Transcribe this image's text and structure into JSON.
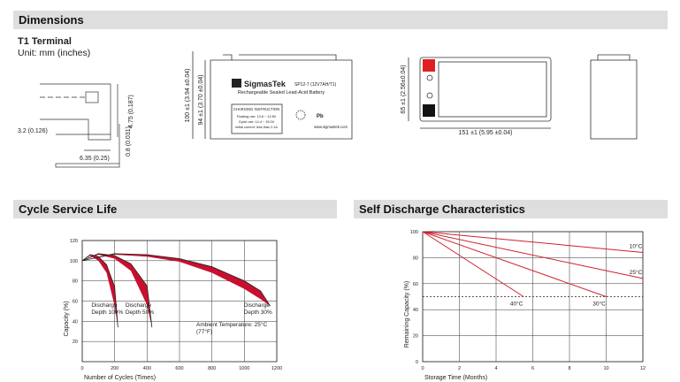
{
  "dimensions": {
    "title": "Dimensions",
    "terminal_title": "T1 Terminal",
    "unit": "Unit: mm (inches)",
    "terminal_labels": [
      "4.75 (0.187)",
      "3.2 (0.126)",
      "6.35 (0.25)",
      "0.8 (0.031)"
    ],
    "front_labels": [
      "100 ±1 (3.94 ±0.04)",
      "94 ±1 (3.70 ±0.04)"
    ],
    "side_labels": [
      "65 ±1 (2.56±0.04)",
      "151 ±1 (5.95 ±0.04)"
    ],
    "battery": {
      "brand": "SigmasTek",
      "model": "SP12-7 (12V7AH/T1)",
      "subtitle": "Rechargeable Sealed Lead-Acid Battery",
      "instruction_title": "CHARGING INSTRUCTION",
      "instructions": [
        "Floating use: 13.6 ~ 13.8V",
        "Cycle use: 14.4 ~ 15.0V",
        "Initial current: less than 2.1A"
      ],
      "pb": "Pb",
      "website": "www.sigmastek.com"
    }
  },
  "chart_data": [
    {
      "type": "band",
      "title": "Cycle Service Life",
      "x_label": "Number of Cycles (Times)",
      "y_label": "Capacity (%)",
      "annotation": "Ambient Temperature: 25°C (77°F)",
      "xlim": [
        0,
        1200
      ],
      "xticks": [
        0,
        200,
        400,
        600,
        800,
        1000,
        1200
      ],
      "ylim": [
        0,
        120
      ],
      "yticks": [
        20,
        40,
        60,
        80,
        100,
        120
      ],
      "grid": true,
      "series": [
        {
          "name": "Discharge Depth 100%",
          "color": "#c8102e",
          "x": [
            0,
            50,
            100,
            150,
            200,
            220
          ],
          "high": [
            100,
            106,
            104,
            96,
            74,
            34
          ],
          "low": [
            100,
            105,
            100,
            88,
            55,
            34
          ]
        },
        {
          "name": "Discharge Depth 50%",
          "color": "#c8102e",
          "x": [
            0,
            100,
            200,
            300,
            400,
            430
          ],
          "high": [
            100,
            107,
            105,
            97,
            75,
            34
          ],
          "low": [
            100,
            106,
            102,
            90,
            56,
            34
          ]
        },
        {
          "name": "Discharge Depth 30%",
          "color": "#c8102e",
          "x": [
            0,
            200,
            400,
            600,
            800,
            1000,
            1100,
            1160
          ],
          "high": [
            100,
            107,
            106,
            102,
            94,
            80,
            70,
            55
          ],
          "low": [
            100,
            106,
            104,
            99,
            88,
            72,
            62,
            55
          ]
        }
      ]
    },
    {
      "type": "line",
      "title": "Self Discharge Characteristics",
      "x_label": "Storage Time (Months)",
      "y_label": "Remaining Capacity (%)",
      "xlim": [
        0,
        12
      ],
      "xticks": [
        0,
        2,
        4,
        6,
        8,
        10,
        12
      ],
      "ylim": [
        0,
        100
      ],
      "yticks": [
        0,
        20,
        40,
        60,
        80,
        100
      ],
      "grid": true,
      "reference_line": 50,
      "series": [
        {
          "name": "10°C",
          "color": "#d0202e",
          "x": [
            0,
            12
          ],
          "values": [
            100,
            84
          ]
        },
        {
          "name": "25°C",
          "color": "#d0202e",
          "x": [
            0,
            12
          ],
          "values": [
            100,
            64
          ]
        },
        {
          "name": "30°C",
          "color": "#d0202e",
          "x": [
            0,
            10
          ],
          "values": [
            100,
            50
          ]
        },
        {
          "name": "40°C",
          "color": "#d0202e",
          "x": [
            0,
            5.5
          ],
          "values": [
            100,
            50
          ]
        }
      ]
    }
  ]
}
